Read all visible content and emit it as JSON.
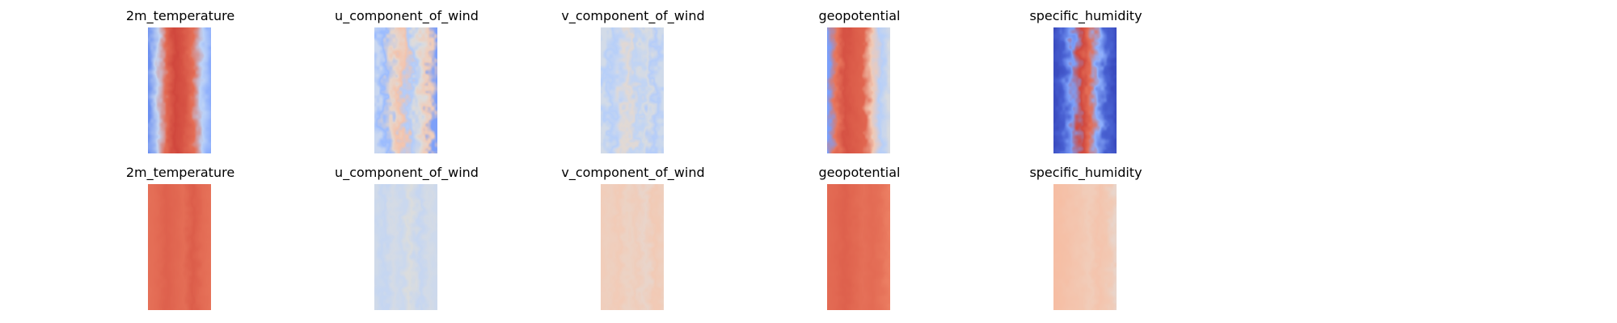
{
  "chart_data": [
    {
      "type": "heatmap",
      "title": "2m_temperature",
      "colormap": "coolwarm",
      "profile": [
        "#6b8ff0",
        "#c4d5f3",
        "#e26952",
        "#d0473d",
        "#d75445",
        "#e46e56",
        "#bcd2f7",
        "#8aacfd"
      ],
      "noise": 0.12,
      "grid": false
    },
    {
      "type": "heatmap",
      "title": "u_component_of_wind",
      "colormap": "coolwarm",
      "profile": [
        "#c9d7f0",
        "#9bbcff",
        "#e7d6cc",
        "#f4c4ad",
        "#b2ccfb",
        "#dddcdc",
        "#f1cdba",
        "#7da0f9"
      ],
      "noise": 0.35,
      "grid": false
    },
    {
      "type": "heatmap",
      "title": "v_component_of_wind",
      "colormap": "coolwarm",
      "profile": [
        "#d2dbe8",
        "#b7cff9",
        "#c9d7f0",
        "#e3d9d3",
        "#c0d4f5",
        "#d9dce1",
        "#b5cdfa",
        "#cfdaea"
      ],
      "noise": 0.4,
      "grid": false
    },
    {
      "type": "heatmap",
      "title": "geopotential",
      "colormap": "coolwarm",
      "profile": [
        "#7b9ff9",
        "#e8765c",
        "#d65244",
        "#dc5d4a",
        "#e0654f",
        "#f2cab5",
        "#b7cff9",
        "#d9dce1"
      ],
      "noise": 0.15,
      "grid": false
    },
    {
      "type": "heatmap",
      "title": "specific_humidity",
      "colormap": "coolwarm",
      "profile": [
        "#3b4cc0",
        "#485fd1",
        "#7da0f9",
        "#d1493f",
        "#e46e56",
        "#8fb1fe",
        "#4a63d3",
        "#3b4cc0"
      ],
      "noise": 0.2,
      "grid": false
    },
    {
      "type": "heatmap",
      "title": "2m_temperature",
      "colormap": "coolwarm",
      "profile": [
        "#e57058",
        "#e36b54",
        "#de614d",
        "#e16751",
        "#e46e56",
        "#dc5d4a",
        "#e36b54",
        "#e67259"
      ],
      "noise": 0.1,
      "grid": false
    },
    {
      "type": "heatmap",
      "title": "u_component_of_wind",
      "colormap": "coolwarm",
      "profile": [
        "#d0dae9",
        "#c5d6f2",
        "#d5dbe5",
        "#cad8ef",
        "#dcdddd",
        "#c6d6f1",
        "#d4dbe6",
        "#cdd9ec"
      ],
      "noise": 0.25,
      "grid": false
    },
    {
      "type": "heatmap",
      "title": "v_component_of_wind",
      "colormap": "coolwarm",
      "profile": [
        "#f1cdba",
        "#eed0c0",
        "#f2cbb7",
        "#ecd3c5",
        "#f0cdbb",
        "#e9d5cb",
        "#f2cab5",
        "#eed0c0"
      ],
      "noise": 0.25,
      "grid": false
    },
    {
      "type": "heatmap",
      "title": "geopotential",
      "colormap": "coolwarm",
      "profile": [
        "#e36b54",
        "#e16751",
        "#de614d",
        "#e26952",
        "#e57058",
        "#e36b54",
        "#e67259",
        "#ec7f63"
      ],
      "noise": 0.14,
      "grid": false
    },
    {
      "type": "heatmap",
      "title": "specific_humidity",
      "colormap": "coolwarm",
      "profile": [
        "#f6bea4",
        "#f5c0a7",
        "#f4c4ad",
        "#f3c7b1",
        "#f1cdba",
        "#f4c4ad",
        "#f2c9b4",
        "#e9d5cb"
      ],
      "noise": 0.22,
      "grid": false
    }
  ]
}
